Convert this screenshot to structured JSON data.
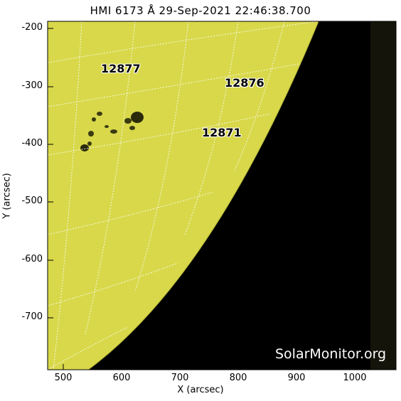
{
  "title": "HMI 6173 Å 29-Sep-2021 22:46:38.700",
  "xlabel": "X (arcsec)",
  "ylabel": "Y (arcsec)",
  "x_ticks": [
    "500",
    "600",
    "700",
    "800",
    "900",
    "1000"
  ],
  "y_ticks": [
    "-200",
    "-300",
    "-400",
    "-500",
    "-600",
    "-700"
  ],
  "active_regions": [
    "12877",
    "12876",
    "12871"
  ],
  "watermark": "SolarMonitor.org",
  "colors": {
    "disk": "#d8d84a",
    "space": "#000000",
    "offdisk_band": "#14140a",
    "grid": "#ffffff"
  }
}
